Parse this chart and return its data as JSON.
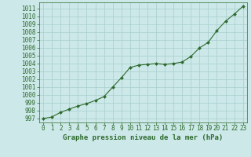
{
  "x": [
    0,
    1,
    2,
    3,
    4,
    5,
    6,
    7,
    8,
    9,
    10,
    11,
    12,
    13,
    14,
    15,
    16,
    17,
    18,
    19,
    20,
    21,
    22,
    23
  ],
  "y": [
    997.0,
    997.2,
    997.8,
    998.2,
    998.6,
    998.9,
    999.3,
    999.8,
    1001.0,
    1002.2,
    1003.5,
    1003.8,
    1003.9,
    1004.0,
    1003.9,
    1004.0,
    1004.2,
    1004.9,
    1006.0,
    1006.7,
    1008.2,
    1009.4,
    1010.3,
    1011.3
  ],
  "line_color": "#2d6a2d",
  "marker_color": "#2d6a2d",
  "bg_color": "#cce8e8",
  "grid_color": "#a8cece",
  "xlabel": "Graphe pression niveau de la mer (hPa)",
  "xlabel_fontsize": 6.5,
  "tick_fontsize": 5.5,
  "ylim": [
    996.5,
    1011.8
  ],
  "xlim": [
    -0.5,
    23.5
  ],
  "yticks": [
    997,
    998,
    999,
    1000,
    1001,
    1002,
    1003,
    1004,
    1005,
    1006,
    1007,
    1008,
    1009,
    1010,
    1011
  ],
  "xticks": [
    0,
    1,
    2,
    3,
    4,
    5,
    6,
    7,
    8,
    9,
    10,
    11,
    12,
    13,
    14,
    15,
    16,
    17,
    18,
    19,
    20,
    21,
    22,
    23
  ]
}
